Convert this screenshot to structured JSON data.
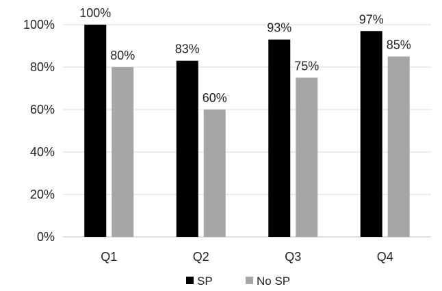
{
  "chart_data": {
    "type": "bar",
    "categories": [
      "Q1",
      "Q2",
      "Q3",
      "Q4"
    ],
    "series": [
      {
        "name": "SP",
        "values": [
          100,
          83,
          93,
          97
        ],
        "labels": [
          "100%",
          "83%",
          "93%",
          "97%"
        ],
        "color": "#000000"
      },
      {
        "name": "No SP",
        "values": [
          80,
          60,
          75,
          85
        ],
        "labels": [
          "80%",
          "60%",
          "75%",
          "85%"
        ],
        "color": "#a6a6a6"
      }
    ],
    "yticks": [
      "0%",
      "20%",
      "40%",
      "60%",
      "80%",
      "100%"
    ],
    "ylim": [
      0,
      100
    ],
    "grid": true,
    "legend_position": "bottom"
  }
}
